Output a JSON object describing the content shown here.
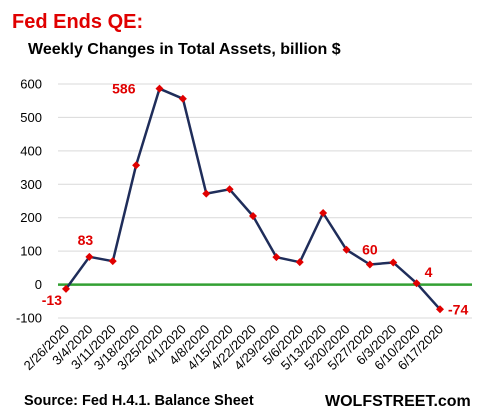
{
  "colors": {
    "title_red": "#e00000",
    "line": "#1f2d5a",
    "marker": "#e00000",
    "zero_line": "#33a033",
    "grid": "#d9d9d9",
    "label_red": "#e00000"
  },
  "header": {
    "title": "Fed Ends  QE:",
    "subtitle": "Weekly Changes in Total Assets, billion $"
  },
  "footer": {
    "source": "Source: Fed H.4.1. Balance Sheet",
    "brand": "WOLFSTREET.com"
  },
  "chart_data": {
    "type": "line",
    "title": "Weekly Changes in Total Assets, billion $",
    "categories": [
      "2/26/2020",
      "3/4/2020",
      "3/11/2020",
      "3/18/2020",
      "3/25/2020",
      "4/1/2020",
      "4/8/2020",
      "4/15/2020",
      "4/22/2020",
      "4/29/2020",
      "5/6/2020",
      "5/13/2020",
      "5/20/2020",
      "5/27/2020",
      "6/3/2020",
      "6/10/2020",
      "6/17/2020"
    ],
    "series": [
      {
        "values": [
          -13,
          83,
          70,
          357,
          586,
          556,
          272,
          285,
          205,
          82,
          67,
          214,
          104,
          60,
          66,
          4,
          -74
        ]
      }
    ],
    "ylim": [
      -100,
      600
    ],
    "yticks": [
      -100,
      0,
      100,
      200,
      300,
      400,
      500,
      600
    ],
    "grid": "horizontal",
    "data_labels": [
      {
        "index": 0,
        "text": "-13"
      },
      {
        "index": 1,
        "text": "83"
      },
      {
        "index": 4,
        "text": "586"
      },
      {
        "index": 13,
        "text": "60"
      },
      {
        "index": 15,
        "text": "4"
      },
      {
        "index": 16,
        "text": "-74"
      }
    ]
  }
}
